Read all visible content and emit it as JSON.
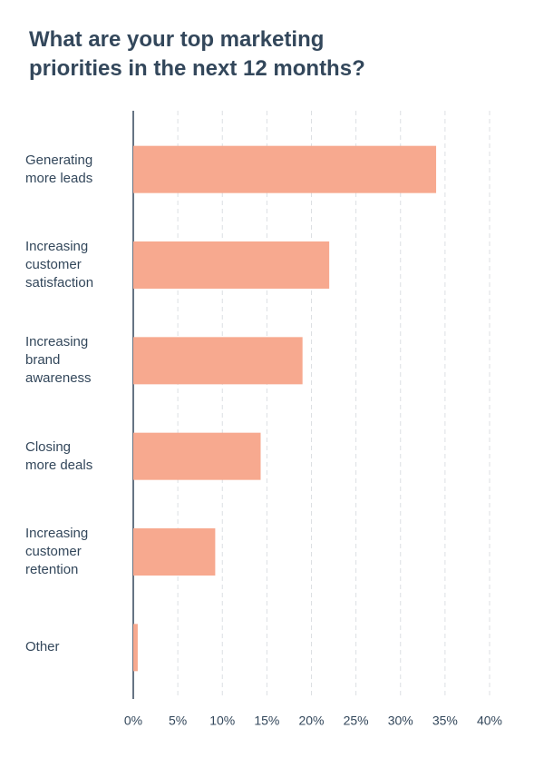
{
  "chart_data": {
    "type": "hbar",
    "title": "What are your top marketing priorities in the next 12 months?",
    "categories": [
      "Generating more leads",
      "Increasing customer satisfaction",
      "Increasing brand awareness",
      "Closing more deals",
      "Increasing customer retention",
      "Other"
    ],
    "values": [
      34,
      22,
      19,
      14.3,
      9.2,
      0.5
    ],
    "color": "#f7a98f",
    "xlim": [
      0,
      40
    ],
    "xticks": [
      {
        "value": 0,
        "label": "0%"
      },
      {
        "value": 5,
        "label": "5%"
      },
      {
        "value": 10,
        "label": "10%"
      },
      {
        "value": 15,
        "label": "15%"
      },
      {
        "value": 20,
        "label": "20%"
      },
      {
        "value": 25,
        "label": "25%"
      },
      {
        "value": 30,
        "label": "30%"
      },
      {
        "value": 35,
        "label": "35%"
      },
      {
        "value": 40,
        "label": "40%"
      }
    ],
    "grid": true
  }
}
